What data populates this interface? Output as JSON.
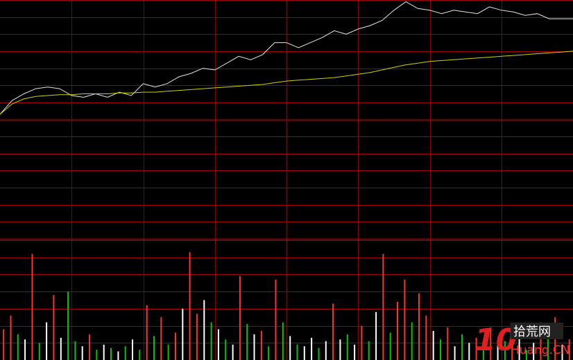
{
  "chart_data": [
    {
      "type": "line",
      "ylim": [
        0,
        14
      ],
      "grid": true,
      "series": [
        {
          "color": "#e6e6e6",
          "values": [
            7.3,
            8.1,
            8.5,
            8.8,
            8.9,
            8.8,
            8.4,
            8.3,
            8.5,
            8.3,
            8.6,
            8.4,
            9.1,
            8.9,
            9.1,
            9.5,
            9.7,
            10.0,
            9.9,
            10.3,
            10.7,
            10.5,
            10.8,
            11.5,
            11.5,
            11.2,
            11.5,
            11.8,
            12.2,
            12.0,
            12.3,
            12.5,
            12.8,
            13.4,
            13.9,
            13.5,
            13.4,
            13.2,
            13.4,
            13.3,
            13.2,
            13.6,
            13.4,
            13.3,
            13.1,
            13.2,
            12.9,
            12.9,
            12.9
          ]
        },
        {
          "color": "#d4d400",
          "values": [
            7.3,
            7.9,
            8.2,
            8.35,
            8.4,
            8.45,
            8.45,
            8.5,
            8.5,
            8.5,
            8.55,
            8.55,
            8.6,
            8.6,
            8.65,
            8.7,
            8.75,
            8.8,
            8.85,
            8.9,
            8.95,
            9.0,
            9.05,
            9.15,
            9.25,
            9.3,
            9.35,
            9.4,
            9.45,
            9.55,
            9.65,
            9.75,
            9.9,
            10.05,
            10.2,
            10.3,
            10.4,
            10.45,
            10.5,
            10.55,
            10.6,
            10.65,
            10.7,
            10.75,
            10.8,
            10.85,
            10.9,
            10.95,
            11.0
          ]
        }
      ]
    },
    {
      "type": "bar",
      "xlim": [
        0,
        80
      ],
      "ylim": [
        0,
        7
      ],
      "grid": true,
      "series": [
        {
          "color": "#ff3232",
          "x": [
            0,
            1,
            4,
            7,
            12,
            20,
            22,
            24,
            26,
            27,
            33,
            36,
            38,
            46,
            50,
            53,
            55,
            56,
            58,
            59,
            62,
            66,
            68,
            71,
            75,
            77,
            79
          ],
          "values": [
            1.8,
            2.6,
            6.2,
            3.8,
            1.5,
            3.2,
            2.5,
            1.6,
            6.3,
            2.7,
            4.9,
            1.7,
            4.7,
            3.3,
            2.0,
            6.2,
            3.4,
            4.7,
            3.9,
            2.6,
            1.9,
            1.3,
            1.9,
            1.8,
            2.2,
            2.5,
            1.2
          ]
        },
        {
          "color": "#00c800",
          "x": [
            2,
            5,
            9,
            10,
            13,
            15,
            17,
            19,
            21,
            23,
            29,
            31,
            34,
            37,
            39,
            41,
            44,
            48,
            51,
            54,
            57,
            61,
            64,
            67,
            70,
            73,
            76
          ],
          "values": [
            1.5,
            1.0,
            4.0,
            1.1,
            0.6,
            0.7,
            0.8,
            0.6,
            1.4,
            0.9,
            2.2,
            1.2,
            2.1,
            0.8,
            2.2,
            0.9,
            0.7,
            1.5,
            1.1,
            1.6,
            2.2,
            1.2,
            1.5,
            0.7,
            1.1,
            0.6,
            1.3
          ]
        },
        {
          "color": "#ffffff",
          "x": [
            3,
            6,
            8,
            11,
            14,
            16,
            18,
            25,
            28,
            30,
            32,
            35,
            40,
            42,
            43,
            45,
            47,
            49,
            52,
            60,
            63,
            65,
            69,
            72,
            74,
            78
          ],
          "values": [
            1.2,
            2.2,
            1.3,
            0.8,
            0.9,
            0.5,
            1.2,
            3.0,
            3.5,
            1.8,
            0.9,
            1.5,
            1.4,
            0.8,
            1.3,
            1.1,
            1.2,
            0.9,
            2.8,
            1.7,
            0.8,
            1.0,
            0.9,
            1.4,
            1.0,
            0.9
          ]
        }
      ]
    }
  ],
  "watermark": {
    "number": "10",
    "site": "拾荒网",
    "domain": "Huang.CN"
  }
}
